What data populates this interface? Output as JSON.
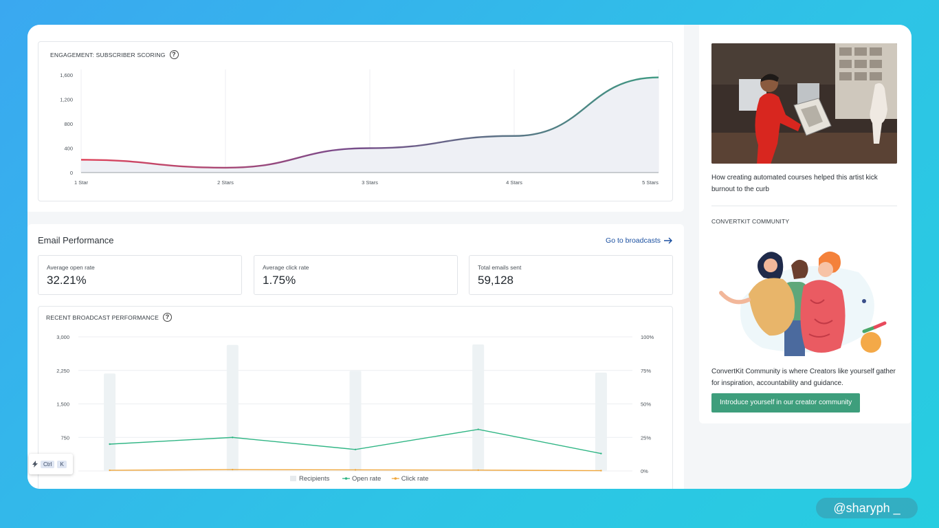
{
  "engagement": {
    "title": "ENGAGEMENT: SUBSCRIBER SCORING",
    "help": "?",
    "chart_data": {
      "type": "area",
      "categories": [
        "1 Star",
        "2 Stars",
        "3 Stars",
        "4 Stars",
        "5 Stars"
      ],
      "values": [
        210,
        80,
        400,
        600,
        1560
      ],
      "y_ticks": [
        "0",
        "400",
        "800",
        "1,200",
        "1,600"
      ],
      "y_tick_values": [
        0,
        400,
        800,
        1200,
        1600
      ],
      "ylim": [
        0,
        1600
      ],
      "grid": "vertical",
      "line_gradient": [
        "#e0445a",
        "#7a4a8a",
        "#3e9a82"
      ],
      "fill": "#eef0f5"
    }
  },
  "performance": {
    "title": "Email Performance",
    "link": "Go to broadcasts",
    "stats": [
      {
        "label": "Average open rate",
        "value": "32.21%"
      },
      {
        "label": "Average click rate",
        "value": "1.75%"
      },
      {
        "label": "Total emails sent",
        "value": "59,128"
      }
    ],
    "recent_title": "RECENT BROADCAST PERFORMANCE",
    "help": "?",
    "chart_data": {
      "type": "bar",
      "bar_count": 5,
      "series": [
        {
          "name": "Recipients",
          "type": "bar",
          "axis": "left",
          "values": [
            2180,
            2820,
            2240,
            2830,
            2200
          ],
          "color": "#edf2f4"
        },
        {
          "name": "Open rate",
          "type": "line",
          "axis": "right",
          "values": [
            20,
            25,
            16,
            31,
            13
          ],
          "color": "#2fb584"
        },
        {
          "name": "Click rate",
          "type": "line",
          "axis": "right",
          "values": [
            0.5,
            1.0,
            0.8,
            0.6,
            0.2
          ],
          "color": "#f0a63a"
        }
      ],
      "y_left_ticks": [
        "0",
        "750",
        "1,500",
        "2,250",
        "3,000"
      ],
      "y_left_values": [
        0,
        750,
        1500,
        2250,
        3000
      ],
      "y_right_ticks": [
        "0%",
        "25%",
        "50%",
        "75%",
        "100%"
      ],
      "y_right_values": [
        0,
        25,
        50,
        75,
        100
      ],
      "ylim_left": [
        0,
        3000
      ],
      "ylim_right": [
        0,
        100
      ],
      "legend": "bottom-center"
    }
  },
  "article": {
    "caption": "How creating automated courses helped this artist kick burnout to the curb"
  },
  "community": {
    "label": "CONVERTKIT COMMUNITY",
    "text": "ConvertKit Community is where Creators like yourself gather for inspiration, accountability and guidance.",
    "cta": "Introduce yourself in our creator community"
  },
  "shortcut": {
    "keys": [
      "Ctrl",
      "K"
    ],
    "icon": "bolt-icon"
  },
  "watermark": "@sharyph _"
}
